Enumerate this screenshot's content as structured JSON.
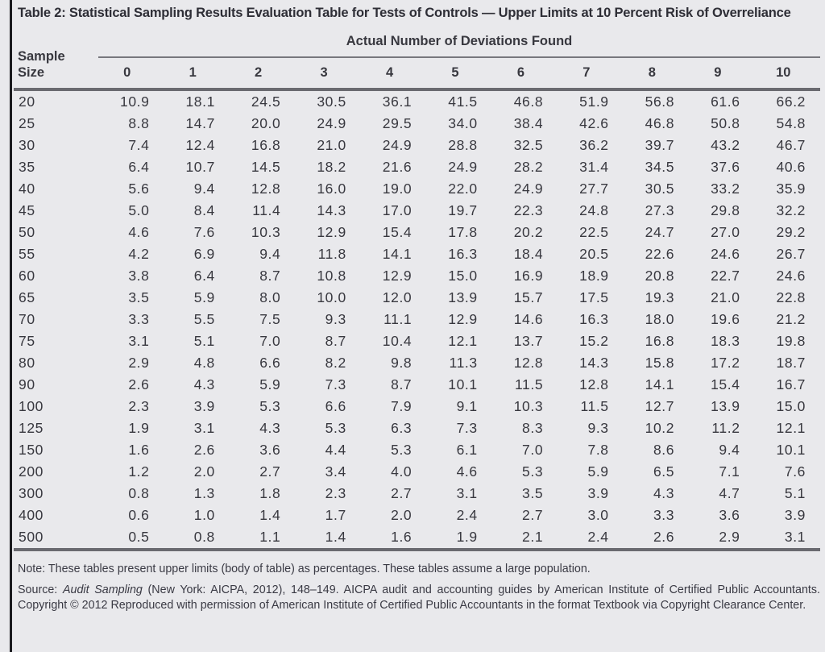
{
  "table": {
    "title": "Table 2: Statistical Sampling Results Evaluation Table for Tests of Controls — Upper Limits at 10 Percent Risk of Overreliance",
    "col_group_header": "Actual Number of Deviations Found",
    "row_header_line1": "Sample",
    "row_header_line2": "Size",
    "deviation_columns": [
      "0",
      "1",
      "2",
      "3",
      "4",
      "5",
      "6",
      "7",
      "8",
      "9",
      "10"
    ],
    "rows": [
      {
        "sample_size": "20",
        "values": [
          "10.9",
          "18.1",
          "24.5",
          "30.5",
          "36.1",
          "41.5",
          "46.8",
          "51.9",
          "56.8",
          "61.6",
          "66.2"
        ]
      },
      {
        "sample_size": "25",
        "values": [
          "8.8",
          "14.7",
          "20.0",
          "24.9",
          "29.5",
          "34.0",
          "38.4",
          "42.6",
          "46.8",
          "50.8",
          "54.8"
        ]
      },
      {
        "sample_size": "30",
        "values": [
          "7.4",
          "12.4",
          "16.8",
          "21.0",
          "24.9",
          "28.8",
          "32.5",
          "36.2",
          "39.7",
          "43.2",
          "46.7"
        ]
      },
      {
        "sample_size": "35",
        "values": [
          "6.4",
          "10.7",
          "14.5",
          "18.2",
          "21.6",
          "24.9",
          "28.2",
          "31.4",
          "34.5",
          "37.6",
          "40.6"
        ]
      },
      {
        "sample_size": "40",
        "values": [
          "5.6",
          "9.4",
          "12.8",
          "16.0",
          "19.0",
          "22.0",
          "24.9",
          "27.7",
          "30.5",
          "33.2",
          "35.9"
        ]
      },
      {
        "sample_size": "45",
        "values": [
          "5.0",
          "8.4",
          "11.4",
          "14.3",
          "17.0",
          "19.7",
          "22.3",
          "24.8",
          "27.3",
          "29.8",
          "32.2"
        ]
      },
      {
        "sample_size": "50",
        "values": [
          "4.6",
          "7.6",
          "10.3",
          "12.9",
          "15.4",
          "17.8",
          "20.2",
          "22.5",
          "24.7",
          "27.0",
          "29.2"
        ]
      },
      {
        "sample_size": "55",
        "values": [
          "4.2",
          "6.9",
          "9.4",
          "11.8",
          "14.1",
          "16.3",
          "18.4",
          "20.5",
          "22.6",
          "24.6",
          "26.7"
        ]
      },
      {
        "sample_size": "60",
        "values": [
          "3.8",
          "6.4",
          "8.7",
          "10.8",
          "12.9",
          "15.0",
          "16.9",
          "18.9",
          "20.8",
          "22.7",
          "24.6"
        ]
      },
      {
        "sample_size": "65",
        "values": [
          "3.5",
          "5.9",
          "8.0",
          "10.0",
          "12.0",
          "13.9",
          "15.7",
          "17.5",
          "19.3",
          "21.0",
          "22.8"
        ]
      },
      {
        "sample_size": "70",
        "values": [
          "3.3",
          "5.5",
          "7.5",
          "9.3",
          "11.1",
          "12.9",
          "14.6",
          "16.3",
          "18.0",
          "19.6",
          "21.2"
        ]
      },
      {
        "sample_size": "75",
        "values": [
          "3.1",
          "5.1",
          "7.0",
          "8.7",
          "10.4",
          "12.1",
          "13.7",
          "15.2",
          "16.8",
          "18.3",
          "19.8"
        ]
      },
      {
        "sample_size": "80",
        "values": [
          "2.9",
          "4.8",
          "6.6",
          "8.2",
          "9.8",
          "11.3",
          "12.8",
          "14.3",
          "15.8",
          "17.2",
          "18.7"
        ]
      },
      {
        "sample_size": "90",
        "values": [
          "2.6",
          "4.3",
          "5.9",
          "7.3",
          "8.7",
          "10.1",
          "11.5",
          "12.8",
          "14.1",
          "15.4",
          "16.7"
        ]
      },
      {
        "sample_size": "100",
        "values": [
          "2.3",
          "3.9",
          "5.3",
          "6.6",
          "7.9",
          "9.1",
          "10.3",
          "11.5",
          "12.7",
          "13.9",
          "15.0"
        ]
      },
      {
        "sample_size": "125",
        "values": [
          "1.9",
          "3.1",
          "4.3",
          "5.3",
          "6.3",
          "7.3",
          "8.3",
          "9.3",
          "10.2",
          "11.2",
          "12.1"
        ]
      },
      {
        "sample_size": "150",
        "values": [
          "1.6",
          "2.6",
          "3.6",
          "4.4",
          "5.3",
          "6.1",
          "7.0",
          "7.8",
          "8.6",
          "9.4",
          "10.1"
        ]
      },
      {
        "sample_size": "200",
        "values": [
          "1.2",
          "2.0",
          "2.7",
          "3.4",
          "4.0",
          "4.6",
          "5.3",
          "5.9",
          "6.5",
          "7.1",
          "7.6"
        ]
      },
      {
        "sample_size": "300",
        "values": [
          "0.8",
          "1.3",
          "1.8",
          "2.3",
          "2.7",
          "3.1",
          "3.5",
          "3.9",
          "4.3",
          "4.7",
          "5.1"
        ]
      },
      {
        "sample_size": "400",
        "values": [
          "0.6",
          "1.0",
          "1.4",
          "1.7",
          "2.0",
          "2.4",
          "2.7",
          "3.0",
          "3.3",
          "3.6",
          "3.9"
        ]
      },
      {
        "sample_size": "500",
        "values": [
          "0.5",
          "0.8",
          "1.1",
          "1.4",
          "1.6",
          "1.9",
          "2.1",
          "2.4",
          "2.6",
          "2.9",
          "3.1"
        ]
      }
    ]
  },
  "notes": {
    "note": "Note: These tables present upper limits (body of table) as percentages. These tables assume a large population.",
    "source_prefix": "Source: ",
    "source_italic": "Audit Sampling",
    "source_rest": " (New York: AICPA, 2012), 148–149. AICPA audit and accounting guides by American Institute of Certified Public Accountants. Copyright © 2012 Reproduced with permission of American Institute of Certified Public Accountants in the format Textbook via Copyright Clearance Center."
  },
  "colors": {
    "background": "#e9e9ec",
    "text": "#38383f",
    "rule_light": "#77777d",
    "rule_heavy": "#6a6a70",
    "left_border": "#1a1a1e"
  }
}
